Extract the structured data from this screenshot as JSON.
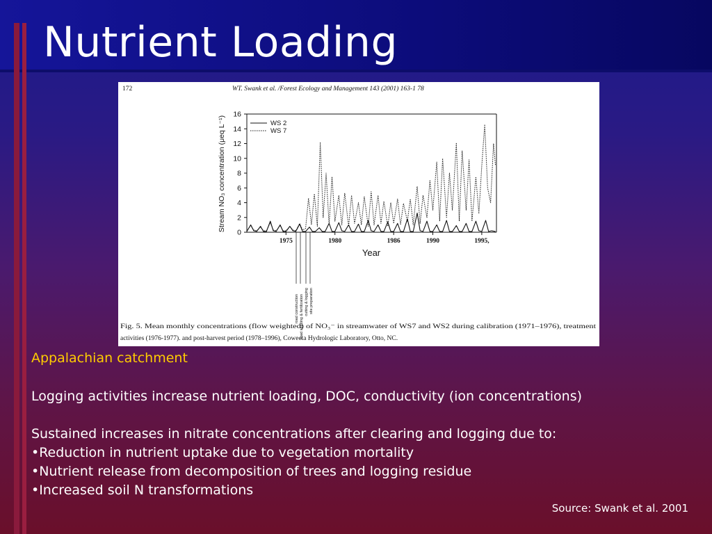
{
  "slide": {
    "title": "Nutrient Loading",
    "subheading": "Appalachian catchment",
    "paragraph1": "Logging activities increase nutrient loading, DOC, conductivity (ion concentrations)",
    "paragraph2": "Sustained increases in nitrate concentrations after clearing and logging due to:",
    "bullets": [
      "•Reduction in nutrient uptake due to vegetation mortality",
      "•Nutrient release from decomposition of trees and logging residue",
      "•Increased soil N transformations"
    ],
    "source": "Source: Swank et al. 2001",
    "colors": {
      "title": "#ffffff",
      "subheading": "#ffcc00",
      "body": "#ffffff",
      "accent_bar": "#8a1a3c"
    }
  },
  "figure": {
    "page_number": "172",
    "header": "WT. Swank et  al. /Forest Ecology and Management 143 (2001) 163-1 78",
    "caption_line1": "Fig. 5. Mean monthly concentrations (flow weighted) of NO₃⁻ in streamwater of WS7 and WS2 during calibration (1971–1976), treatment",
    "caption_line2": "activities (1976-1977). and post-harvest period (1978–1996), Coweeta Hydrologic Laboratory, Otto, NC.",
    "annotations": [
      "road construction",
      "road seeding & fertilization",
      "cutting & logging",
      "site preparation"
    ]
  },
  "chart_data": {
    "type": "line",
    "title": "",
    "xlabel": "Year",
    "ylabel": "Stream NO₃ concentration (μeq L⁻¹)",
    "ylim": [
      0,
      16
    ],
    "xlim": [
      1971,
      1996.5
    ],
    "yticks": [
      "0",
      "2",
      "4",
      "6",
      "8",
      "10",
      "12",
      "14",
      "16"
    ],
    "xticks": [
      {
        "value": 1975,
        "label": "1975"
      },
      {
        "value": 1980,
        "label": "1980"
      },
      {
        "value": 1986,
        "label": "1986"
      },
      {
        "value": 1990,
        "label": "1990"
      },
      {
        "value": 1995,
        "label": "1995,"
      }
    ],
    "legend_position": "top-left",
    "series": [
      {
        "name": "WS 2",
        "style": "solid",
        "x": [
          1971.0,
          1971.4,
          1971.7,
          1972.0,
          1972.4,
          1972.7,
          1973.0,
          1973.4,
          1973.7,
          1974.0,
          1974.4,
          1974.7,
          1975.0,
          1975.4,
          1975.7,
          1976.0,
          1976.4,
          1976.7,
          1977.0,
          1977.4,
          1977.7,
          1978.0,
          1978.4,
          1978.7,
          1979.0,
          1979.4,
          1979.7,
          1980.0,
          1980.4,
          1980.7,
          1981.0,
          1981.4,
          1981.7,
          1982.0,
          1982.4,
          1982.7,
          1983.0,
          1983.4,
          1983.7,
          1984.0,
          1984.4,
          1984.7,
          1985.0,
          1985.4,
          1985.7,
          1986.0,
          1986.4,
          1986.7,
          1987.0,
          1987.4,
          1987.7,
          1988.0,
          1988.4,
          1988.7,
          1989.0,
          1989.4,
          1989.7,
          1990.0,
          1990.4,
          1990.7,
          1991.0,
          1991.4,
          1991.7,
          1992.0,
          1992.4,
          1992.7,
          1993.0,
          1993.4,
          1993.7,
          1994.0,
          1994.4,
          1994.7,
          1995.0,
          1995.4,
          1995.7,
          1996.0,
          1996.4
        ],
        "values": [
          0.1,
          1.0,
          0.2,
          0.1,
          0.8,
          0.1,
          0.1,
          1.5,
          0.2,
          0.1,
          1.0,
          0.1,
          0.1,
          0.8,
          0.2,
          0.1,
          1.1,
          0.1,
          0.1,
          0.7,
          0.1,
          0.1,
          0.6,
          0.1,
          0.1,
          1.2,
          0.1,
          0.1,
          1.3,
          0.2,
          0.1,
          1.0,
          0.1,
          0.1,
          1.1,
          0.1,
          0.1,
          1.6,
          0.2,
          0.1,
          1.0,
          0.1,
          0.1,
          1.4,
          0.1,
          0.1,
          1.2,
          0.1,
          0.1,
          1.8,
          0.1,
          0.1,
          2.6,
          0.2,
          0.1,
          1.5,
          0.1,
          0.1,
          1.0,
          0.1,
          0.1,
          1.6,
          0.1,
          0.1,
          0.9,
          0.1,
          0.1,
          1.2,
          0.1,
          0.1,
          1.5,
          0.2,
          0.1,
          1.6,
          0.1,
          0.2,
          0.1
        ]
      },
      {
        "name": "WS 7",
        "style": "dotted",
        "x": [
          1971.0,
          1971.4,
          1971.7,
          1972.0,
          1972.4,
          1972.7,
          1973.0,
          1973.4,
          1973.7,
          1974.0,
          1974.4,
          1974.7,
          1975.0,
          1975.4,
          1975.7,
          1976.0,
          1976.4,
          1976.7,
          1977.0,
          1977.3,
          1977.6,
          1977.9,
          1978.2,
          1978.5,
          1978.8,
          1979.1,
          1979.4,
          1979.7,
          1980.0,
          1980.4,
          1980.7,
          1981.0,
          1981.4,
          1981.7,
          1982.0,
          1982.4,
          1982.7,
          1983.0,
          1983.4,
          1983.7,
          1984.0,
          1984.4,
          1984.7,
          1985.0,
          1985.4,
          1985.7,
          1986.0,
          1986.4,
          1986.7,
          1987.0,
          1987.4,
          1987.7,
          1988.0,
          1988.4,
          1988.7,
          1989.0,
          1989.4,
          1989.7,
          1990.0,
          1990.4,
          1990.7,
          1991.0,
          1991.4,
          1991.7,
          1992.0,
          1992.4,
          1992.7,
          1993.0,
          1993.4,
          1993.7,
          1994.0,
          1994.4,
          1994.7,
          1995.0,
          1995.3,
          1995.6,
          1995.9,
          1996.2,
          1996.4
        ],
        "values": [
          0.2,
          0.9,
          0.3,
          0.2,
          0.7,
          0.2,
          0.2,
          1.3,
          0.3,
          0.2,
          0.9,
          0.2,
          0.2,
          0.8,
          0.3,
          0.2,
          1.2,
          0.3,
          0.5,
          4.6,
          1.0,
          5.2,
          0.8,
          12.2,
          2.0,
          8.0,
          1.0,
          7.5,
          1.5,
          5.0,
          1.0,
          5.3,
          0.8,
          5.0,
          1.2,
          4.0,
          1.0,
          4.8,
          0.8,
          5.5,
          1.0,
          5.0,
          1.2,
          4.2,
          0.8,
          4.0,
          1.2,
          4.5,
          1.0,
          3.9,
          1.5,
          4.5,
          1.0,
          6.2,
          1.2,
          5.0,
          2.0,
          7.0,
          3.0,
          9.5,
          1.5,
          10.0,
          2.0,
          8.0,
          3.0,
          12.1,
          1.5,
          11.0,
          3.0,
          9.8,
          1.5,
          7.5,
          2.5,
          9.0,
          14.6,
          6.0,
          4.0,
          12.0,
          9.0
        ]
      }
    ]
  }
}
